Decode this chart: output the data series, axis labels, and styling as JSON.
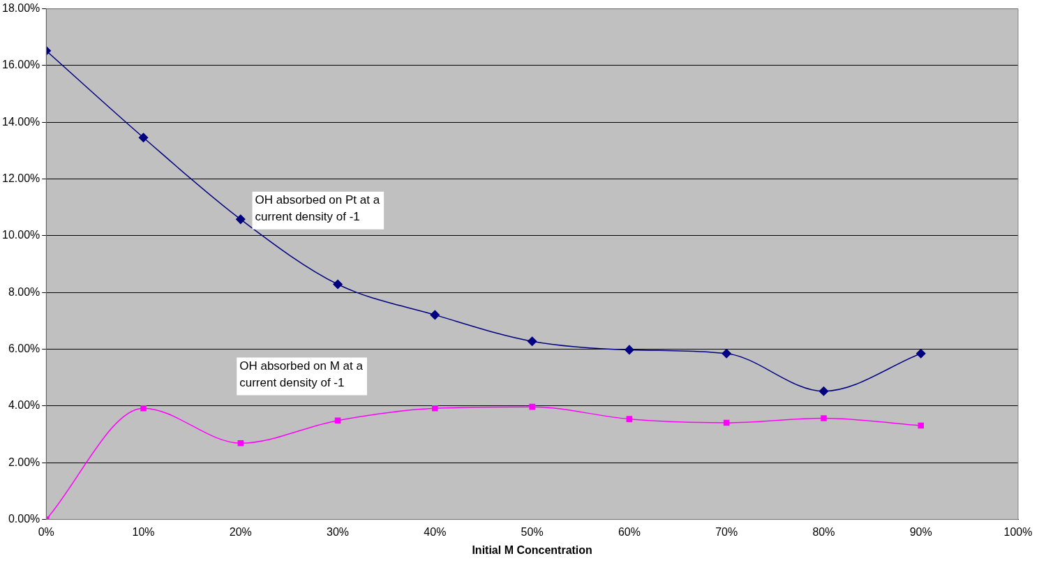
{
  "chart_data": {
    "type": "line",
    "xlabel": "Initial M Concentration",
    "x": [
      0,
      10,
      20,
      30,
      40,
      50,
      60,
      70,
      80,
      90
    ],
    "series": [
      {
        "color": "#000080",
        "marker": "diamond",
        "values": [
          16.52,
          13.46,
          10.58,
          8.29,
          7.21,
          6.28,
          5.98,
          5.85,
          4.52,
          5.85
        ]
      },
      {
        "color": "#ff00ff",
        "marker": "square",
        "values": [
          0,
          3.92,
          2.69,
          3.49,
          3.92,
          3.97,
          3.54,
          3.41,
          3.57,
          3.31
        ]
      }
    ],
    "xlim": [
      0,
      100
    ],
    "xticks": [
      {
        "value": 0,
        "label": "0%"
      },
      {
        "value": 10,
        "label": "10%"
      },
      {
        "value": 20,
        "label": "20%"
      },
      {
        "value": 30,
        "label": "30%"
      },
      {
        "value": 40,
        "label": "40%"
      },
      {
        "value": 50,
        "label": "50%"
      },
      {
        "value": 60,
        "label": "60%"
      },
      {
        "value": 70,
        "label": "70%"
      },
      {
        "value": 80,
        "label": "80%"
      },
      {
        "value": 90,
        "label": "90%"
      },
      {
        "value": 100,
        "label": "100%"
      }
    ],
    "ylim": [
      0,
      18
    ],
    "yticks": [
      {
        "value": 0,
        "label": "0.00%"
      },
      {
        "value": 2,
        "label": "2.00%"
      },
      {
        "value": 4,
        "label": "4.00%"
      },
      {
        "value": 6,
        "label": "6.00%"
      },
      {
        "value": 8,
        "label": "8.00%"
      },
      {
        "value": 10,
        "label": "10.00%"
      },
      {
        "value": 12,
        "label": "12.00%"
      },
      {
        "value": 14,
        "label": "14.00%"
      },
      {
        "value": 16,
        "label": "16.00%"
      },
      {
        "value": 18,
        "label": "18.00%"
      }
    ],
    "grid": "y",
    "legend": false,
    "annotations": [
      "OH absorbed on Pt at a current density of -1",
      "OH absorbed on M at a current density of -1"
    ]
  }
}
